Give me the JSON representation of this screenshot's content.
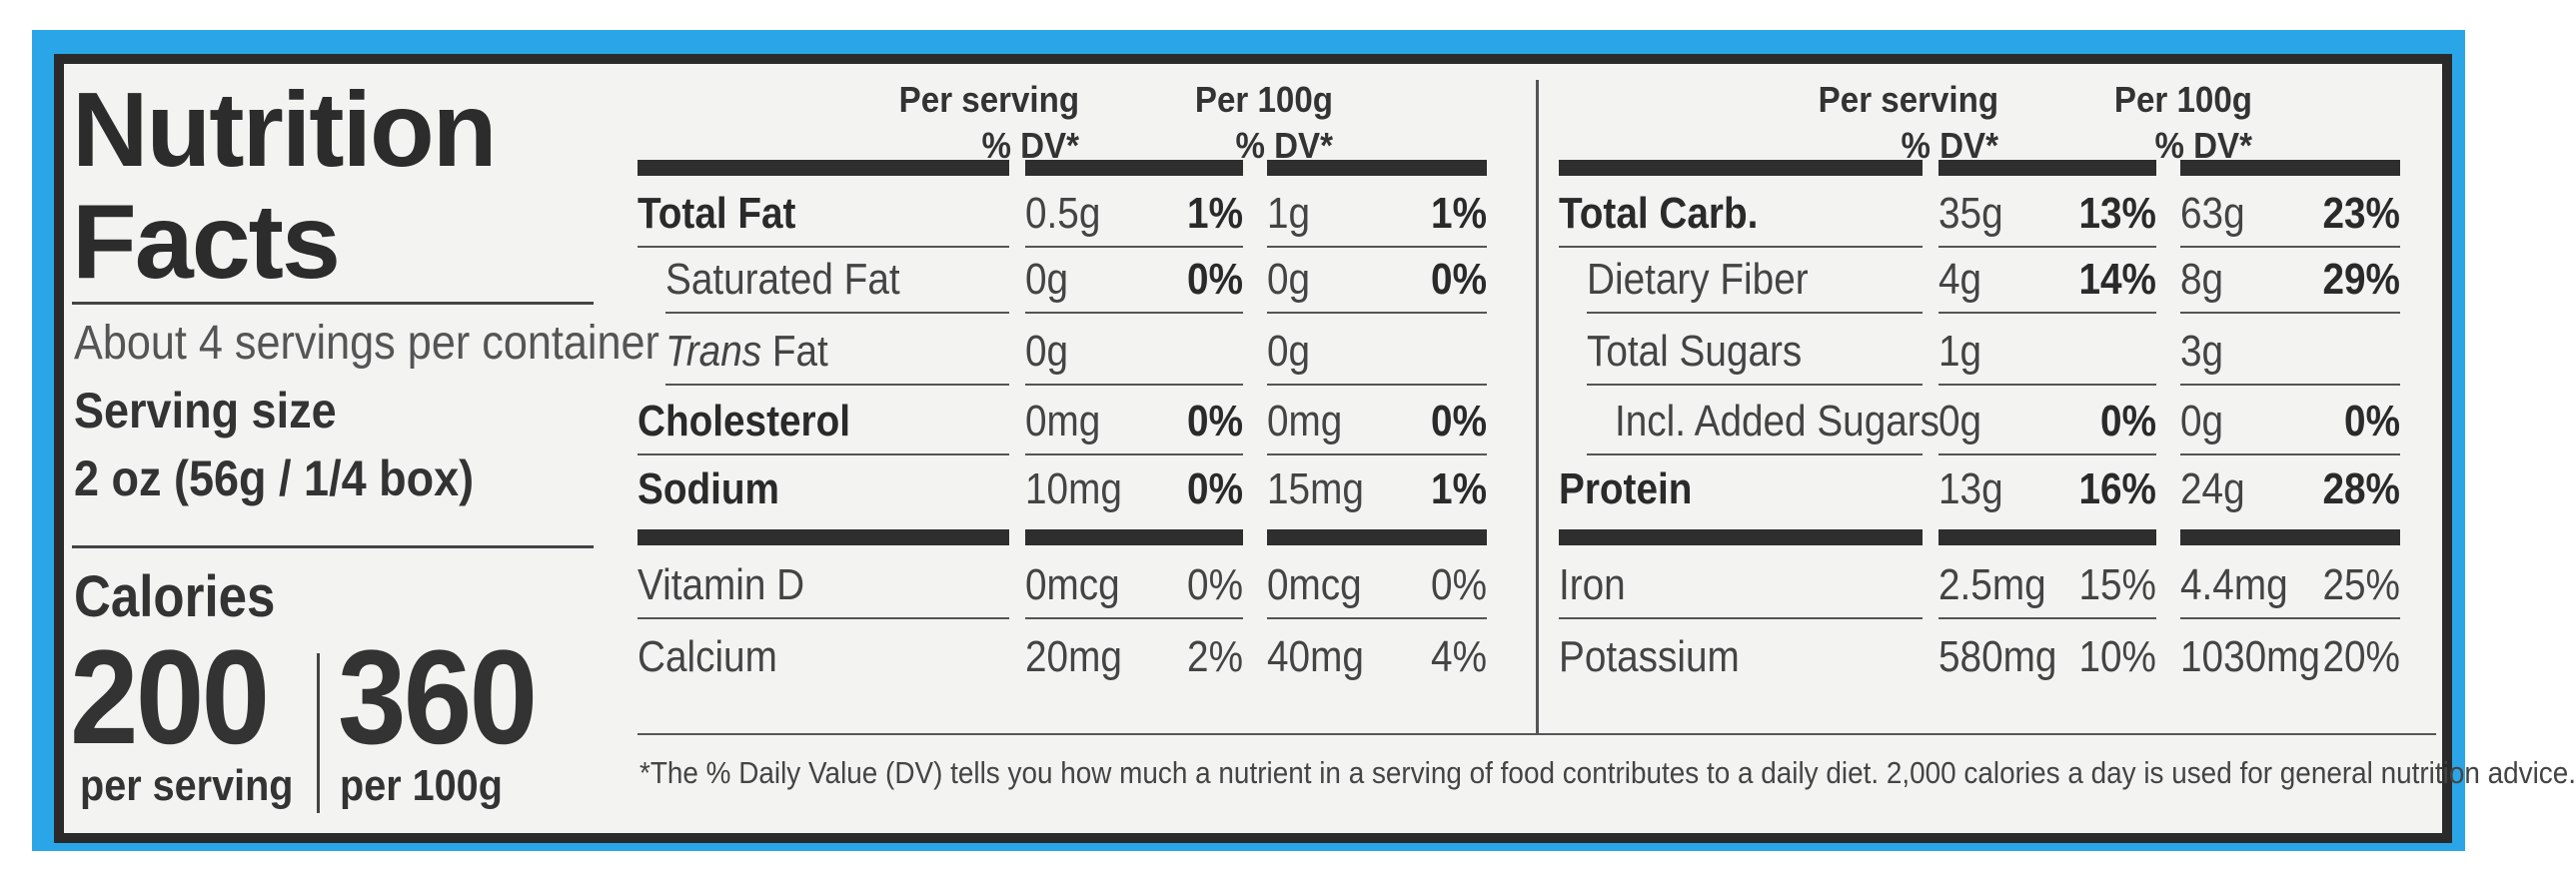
{
  "label": {
    "title_line1": "Nutrition",
    "title_line2": "Facts",
    "servings_per_container": "About 4 servings per container",
    "serving_size_label": "Serving size",
    "serving_size_value": "2 oz (56g / 1/4 box)",
    "calories_label": "Calories",
    "calories_per_serving": "200",
    "calories_per_serving_label": "per serving",
    "calories_per_100g": "360",
    "calories_per_100g_label": "per 100g"
  },
  "headers": {
    "per_serving": "Per serving",
    "per_100g": "Per 100g",
    "dv": "% DV*"
  },
  "left_table": [
    {
      "name": "Total Fat",
      "style": "bold",
      "serv_amt": "0.5g",
      "serv_dv": "1%",
      "g100_amt": "1g",
      "g100_dv": "1%"
    },
    {
      "name": "Saturated Fat",
      "style": "indent",
      "serv_amt": "0g",
      "serv_dv": "0%",
      "g100_amt": "0g",
      "g100_dv": "0%"
    },
    {
      "name_italic": "Trans",
      "name": " Fat",
      "style": "indent",
      "serv_amt": "0g",
      "serv_dv": "",
      "g100_amt": "0g",
      "g100_dv": ""
    },
    {
      "name": "Cholesterol",
      "style": "bold",
      "serv_amt": "0mg",
      "serv_dv": "0%",
      "g100_amt": "0mg",
      "g100_dv": "0%"
    },
    {
      "name": "Sodium",
      "style": "bold",
      "serv_amt": "10mg",
      "serv_dv": "0%",
      "g100_amt": "15mg",
      "g100_dv": "1%"
    },
    {
      "name": "Vitamin D",
      "style": "plain",
      "serv_amt": "0mcg",
      "serv_dv": "0%",
      "g100_amt": "0mcg",
      "g100_dv": "0%"
    },
    {
      "name": "Calcium",
      "style": "plain",
      "serv_amt": "20mg",
      "serv_dv": "2%",
      "g100_amt": "40mg",
      "g100_dv": "4%"
    }
  ],
  "right_table": [
    {
      "name": "Total Carb.",
      "style": "bold",
      "serv_amt": "35g",
      "serv_dv": "13%",
      "g100_amt": "63g",
      "g100_dv": "23%"
    },
    {
      "name": "Dietary Fiber",
      "style": "indent",
      "serv_amt": "4g",
      "serv_dv": "14%",
      "g100_amt": "8g",
      "g100_dv": "29%"
    },
    {
      "name": "Total Sugars",
      "style": "indent",
      "serv_amt": "1g",
      "serv_dv": "",
      "g100_amt": "3g",
      "g100_dv": ""
    },
    {
      "name": "Incl. Added Sugars",
      "style": "indent2",
      "serv_amt": "0g",
      "serv_dv": "0%",
      "g100_amt": "0g",
      "g100_dv": "0%"
    },
    {
      "name": "Protein",
      "style": "bold",
      "serv_amt": "13g",
      "serv_dv": "16%",
      "g100_amt": "24g",
      "g100_dv": "28%"
    },
    {
      "name": "Iron",
      "style": "plain",
      "serv_amt": "2.5mg",
      "serv_dv": "15%",
      "g100_amt": "4.4mg",
      "g100_dv": "25%"
    },
    {
      "name": "Potassium",
      "style": "plain",
      "serv_amt": "580mg",
      "serv_dv": "10%",
      "g100_amt": "1030mg",
      "g100_dv": "20%"
    }
  ],
  "footnote": "*The % Daily Value (DV) tells you how much a nutrient in a serving of food contributes to a daily diet. 2,000 calories a day is used for general nutrition advice.",
  "colors": {
    "frame": "#2aa6e8",
    "background": "#f3f4f2",
    "ink": "#2a2a2a"
  }
}
